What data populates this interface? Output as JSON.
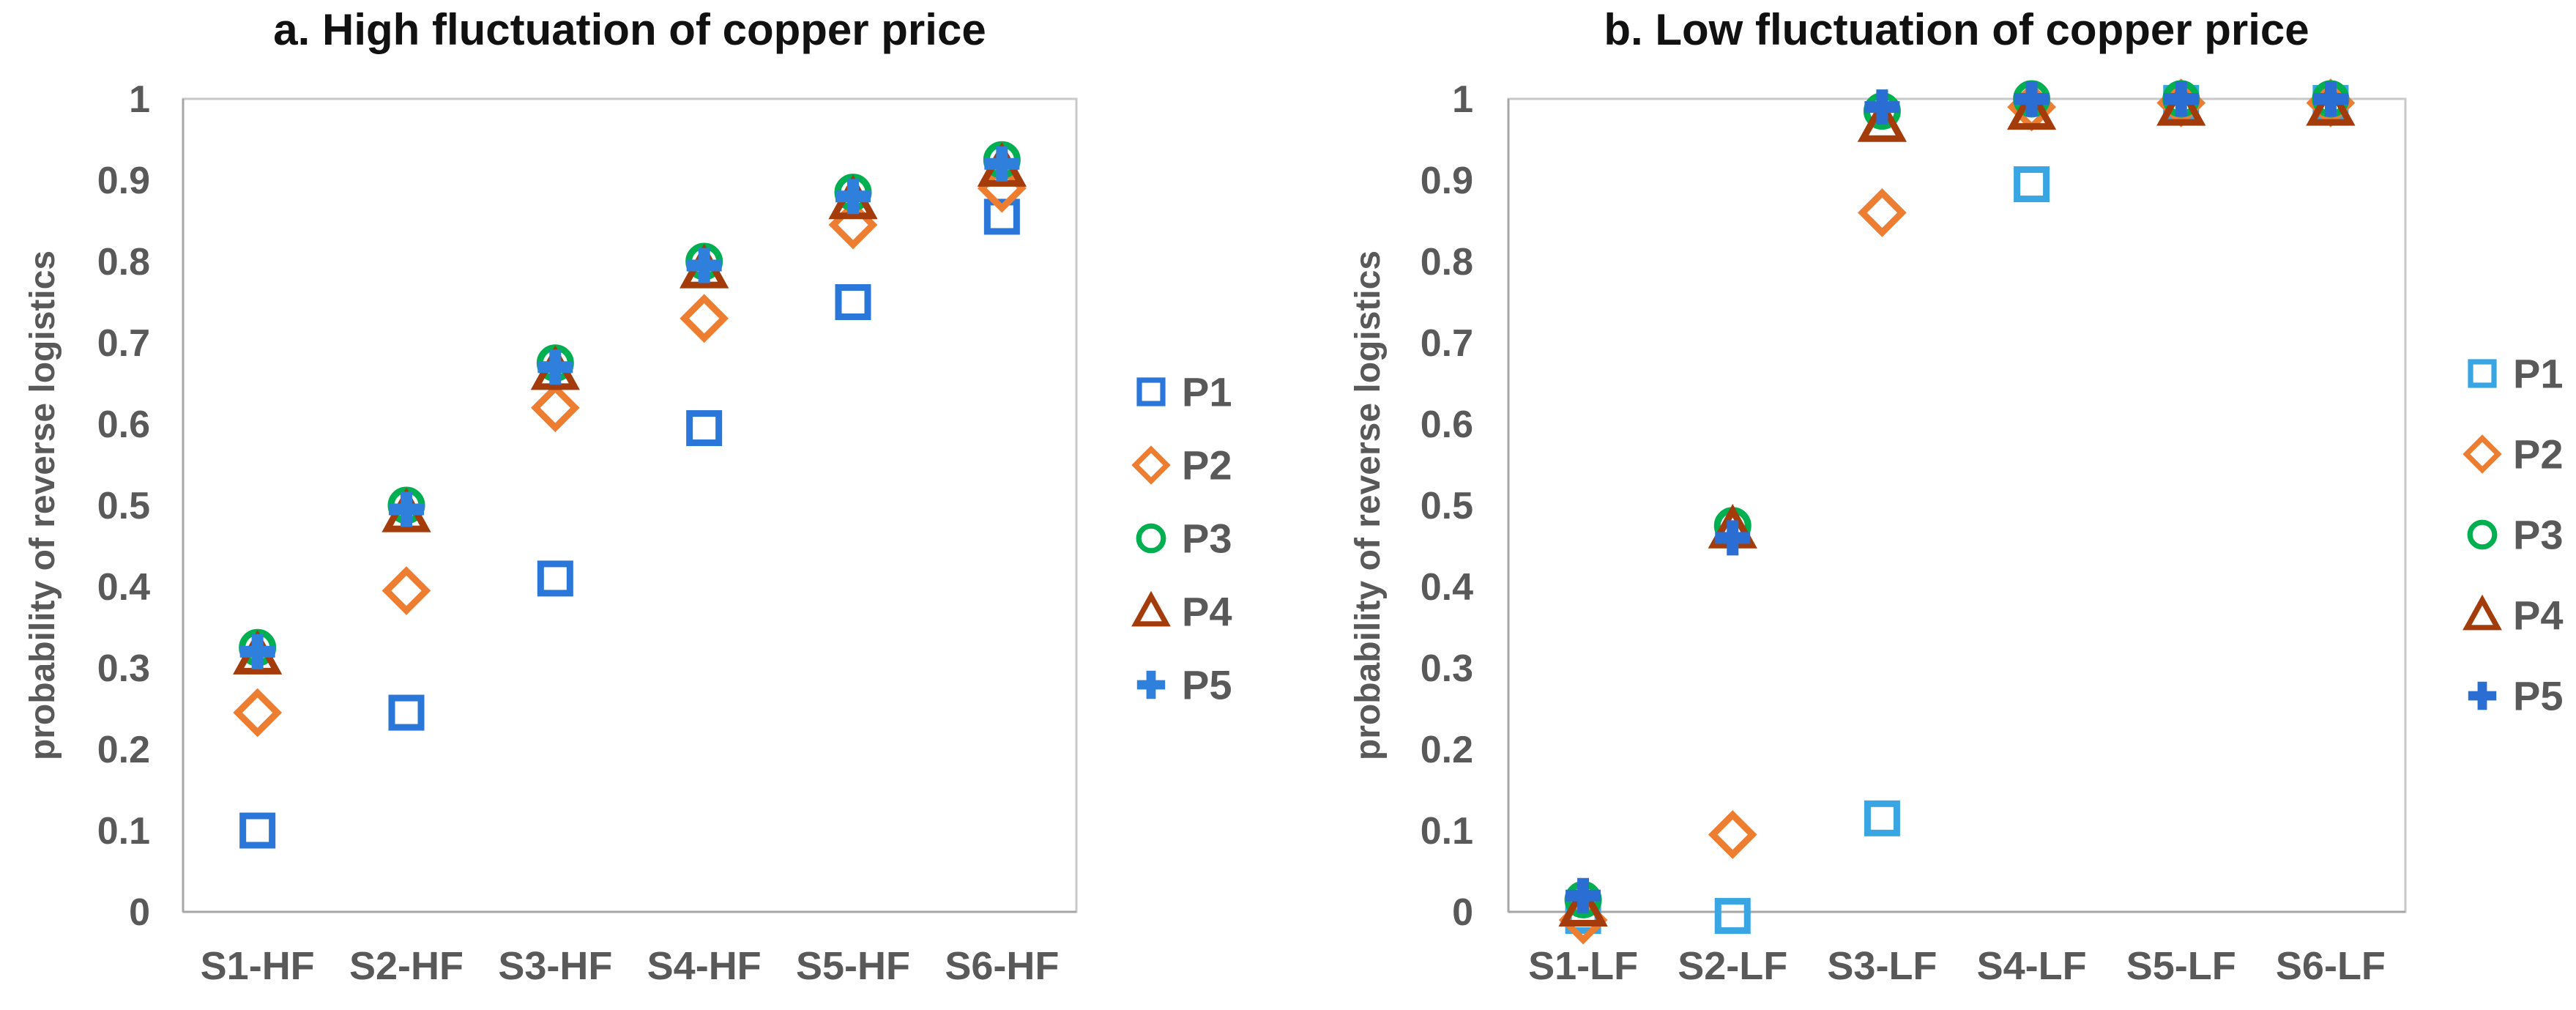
{
  "colors": {
    "background": "#ffffff",
    "text_gray": "#595959",
    "title_black": "#111111",
    "plot_border": "#c9c9c9",
    "axis_line": "#a6a6a6"
  },
  "chart_data": [
    {
      "id": "chart-a",
      "type": "scatter",
      "title": "a. High fluctuation of copper price",
      "ylabel": "probability of reverse logistics",
      "xlabel": "",
      "ylim": [
        0,
        1
      ],
      "grid": false,
      "legend_position": "right",
      "y_ticks": [
        "1",
        "0.9",
        "0.8",
        "0.7",
        "0.6",
        "0.5",
        "0.4",
        "0.3",
        "0.2",
        "0.1",
        "0"
      ],
      "categories": [
        "S1-HF",
        "S2-HF",
        "S3-HF",
        "S4-HF",
        "S5-HF",
        "S6-HF"
      ],
      "series": [
        {
          "name": "P1",
          "marker": "square",
          "color": "#2a76d9",
          "values": [
            0.1,
            0.245,
            0.41,
            0.595,
            0.75,
            0.855
          ]
        },
        {
          "name": "P2",
          "marker": "diamond",
          "color": "#ed7d31",
          "values": [
            0.245,
            0.395,
            0.62,
            0.73,
            0.845,
            0.89
          ]
        },
        {
          "name": "P3",
          "marker": "circle",
          "color": "#00b050",
          "values": [
            0.325,
            0.5,
            0.675,
            0.8,
            0.885,
            0.925
          ]
        },
        {
          "name": "P4",
          "marker": "triangle",
          "color": "#a33c0a",
          "values": [
            0.315,
            0.49,
            0.665,
            0.79,
            0.875,
            0.915
          ]
        },
        {
          "name": "P5",
          "marker": "plus",
          "color": "#2f7fdd",
          "values": [
            0.32,
            0.495,
            0.67,
            0.795,
            0.88,
            0.92
          ]
        }
      ]
    },
    {
      "id": "chart-b",
      "type": "scatter",
      "title": "b. Low fluctuation of copper price",
      "ylabel": "probability of reverse logistics",
      "xlabel": "",
      "ylim": [
        0,
        1
      ],
      "grid": false,
      "legend_position": "right",
      "y_ticks": [
        "1",
        "0.9",
        "0.8",
        "0.7",
        "0.6",
        "0.5",
        "0.4",
        "0.3",
        "0.2",
        "0.1",
        "0"
      ],
      "categories": [
        "S1-LF",
        "S2-LF",
        "S3-LF",
        "S4-LF",
        "S5-LF",
        "S6-LF"
      ],
      "series": [
        {
          "name": "P1",
          "marker": "square",
          "color": "#3aa5e3",
          "values": [
            -0.005,
            -0.005,
            0.115,
            0.895,
            0.995,
            0.995
          ]
        },
        {
          "name": "P2",
          "marker": "diamond",
          "color": "#ed7d31",
          "values": [
            -0.01,
            0.095,
            0.86,
            0.99,
            0.995,
            0.995
          ]
        },
        {
          "name": "P3",
          "marker": "circle",
          "color": "#00b050",
          "values": [
            0.015,
            0.475,
            0.985,
            1.0,
            1.0,
            1.0
          ]
        },
        {
          "name": "P4",
          "marker": "triangle",
          "color": "#a33c0a",
          "values": [
            0.005,
            0.47,
            0.97,
            0.985,
            0.99,
            0.99
          ]
        },
        {
          "name": "P5",
          "marker": "plus",
          "color": "#2b6ed3",
          "values": [
            0.02,
            0.46,
            0.99,
            1.0,
            1.0,
            1.0
          ]
        }
      ]
    }
  ]
}
